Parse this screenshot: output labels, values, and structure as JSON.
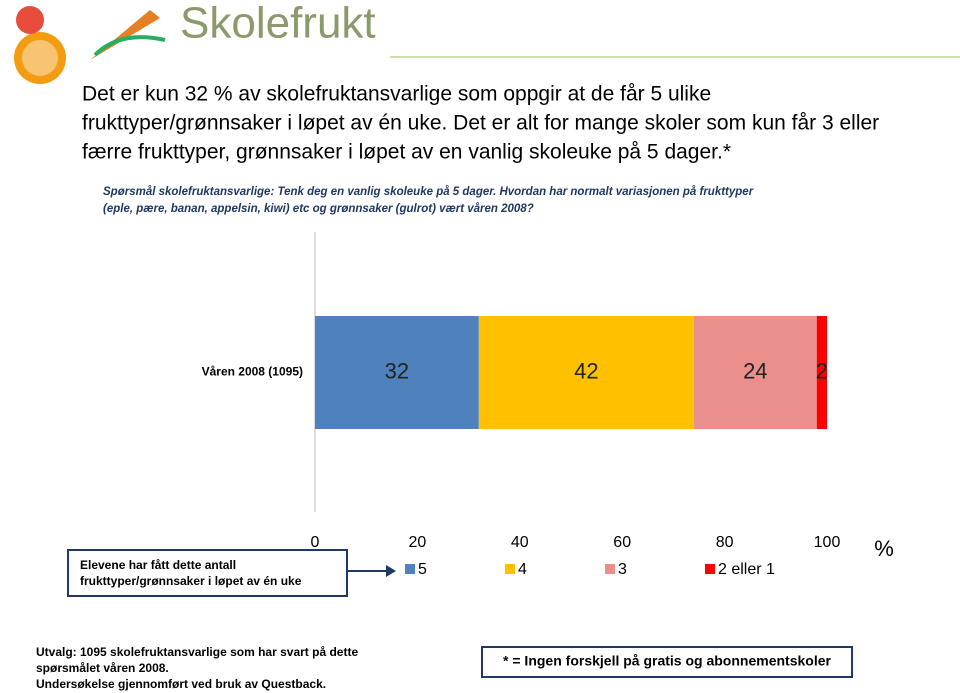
{
  "header": {
    "logo": "Skolefrukt"
  },
  "heading": [
    "Det er kun 32 % av skolefruktansvarlige som oppgir at de får 5 ulike",
    "frukttyper/grønnsaker i løpet av én uke. Det er alt for mange skoler som kun får 3 eller",
    "færre frukttyper, grønnsaker i løpet av en vanlig skoleuke på 5 dager.*"
  ],
  "question": [
    "Spørsmål skolefruktansvarlige: Tenk deg en vanlig skoleuke på 5 dager. Hvordan har normalt variasjonen på frukttyper",
    "(eple, pære, banan, appelsin, kiwi) etc og grønnsaker (gulrot) vært våren 2008?"
  ],
  "chart_data": {
    "type": "stacked_barh",
    "categories": [
      "Våren 2008 (1095)"
    ],
    "series": [
      {
        "name": "5",
        "color": "#4f81bd",
        "values": [
          32
        ]
      },
      {
        "name": "4",
        "color": "#ffc000",
        "values": [
          42
        ]
      },
      {
        "name": "3",
        "color": "#eb8f8c",
        "values": [
          24
        ]
      },
      {
        "name": "2 eller 1",
        "color": "#ff0000",
        "values": [
          2
        ]
      }
    ],
    "xlim": [
      0,
      100
    ],
    "xticks": [
      0,
      20,
      40,
      60,
      80,
      100
    ],
    "x_label": "%",
    "legend_title": [
      "Elevene har fått dette antall",
      "frukttyper/grønnsaker i løpet av én uke"
    ]
  },
  "footer": {
    "notes": [
      "Utvalg: 1095 skolefruktansvarlige som har svart på dette",
      "spørsmålet våren 2008.",
      "Undersøkelse gjennomført ved bruk av Questback."
    ],
    "box": "* = Ingen forskjell på gratis og abonnementskoler"
  }
}
